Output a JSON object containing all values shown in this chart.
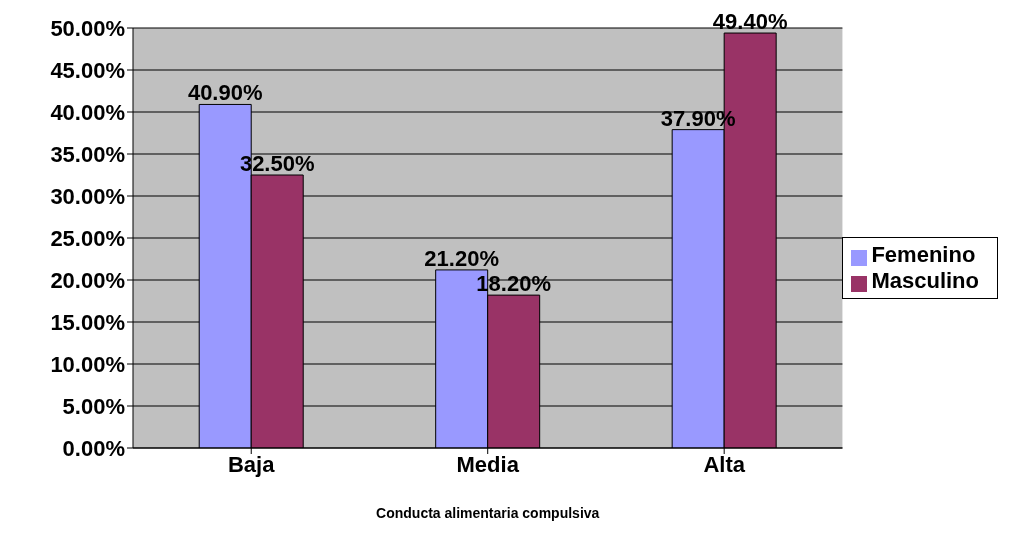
{
  "chart_data": {
    "type": "bar",
    "xlabel": "Conducta alimentaria compulsiva",
    "categories": [
      "Baja",
      "Media",
      "Alta"
    ],
    "series": [
      {
        "name": "Femenino",
        "color": "#9999ff",
        "values": [
          40.9,
          21.2,
          37.9
        ],
        "value_labels": [
          "40.90%",
          "21.20%",
          "37.90%"
        ]
      },
      {
        "name": "Masculino",
        "color": "#993366",
        "values": [
          32.5,
          18.2,
          49.4
        ],
        "value_labels": [
          "32.50%",
          "18.20%",
          "49.40%"
        ]
      }
    ],
    "ylim": [
      0,
      50
    ],
    "yticks": [
      {
        "value": 0,
        "label": "0.00%"
      },
      {
        "value": 5,
        "label": "5.00%"
      },
      {
        "value": 10,
        "label": "10.00%"
      },
      {
        "value": 15,
        "label": "15.00%"
      },
      {
        "value": 20,
        "label": "20.00%"
      },
      {
        "value": 25,
        "label": "25.00%"
      },
      {
        "value": 30,
        "label": "30.00%"
      },
      {
        "value": 35,
        "label": "35.00%"
      },
      {
        "value": 40,
        "label": "40.00%"
      },
      {
        "value": 45,
        "label": "45.00%"
      },
      {
        "value": 50,
        "label": "50.00%"
      }
    ],
    "grid": "y",
    "legend": "right"
  }
}
